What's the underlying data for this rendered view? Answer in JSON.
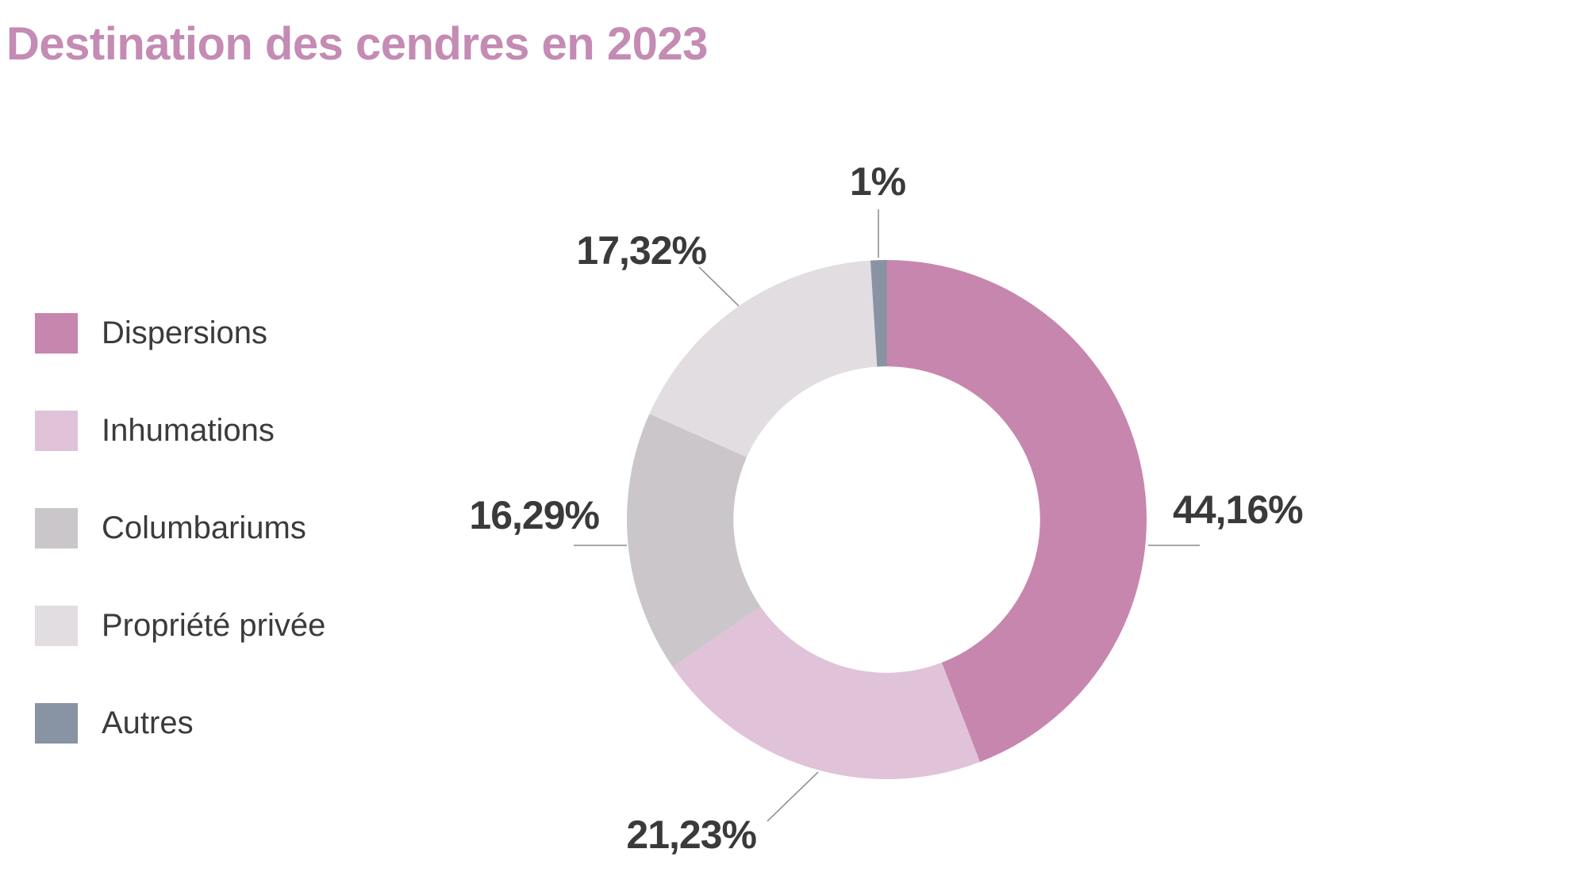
{
  "title": "Destination des cendres en 2023",
  "colors": {
    "title": "#c48bb4",
    "label_text": "#3a3a3a",
    "legend_text": "#3b3b3b",
    "callout_line": "#8a8a8a",
    "background": "#ffffff"
  },
  "chart_data": {
    "type": "pie",
    "title": "Destination des cendres en 2023",
    "categories": [
      "Dispersions",
      "Inhumations",
      "Columbariums",
      "Propriété privée",
      "Autres"
    ],
    "values": [
      44.16,
      21.23,
      16.29,
      17.32,
      1.0
    ],
    "labels": [
      "44,16%",
      "21,23%",
      "16,29%",
      "17,32%",
      "1%"
    ],
    "colors": [
      "#c786ad",
      "#e0c3d8",
      "#cac6ca",
      "#e2dde1",
      "#8893a3"
    ],
    "style": {
      "donut": true,
      "inner_radius_ratio": 0.59,
      "start_angle": "top",
      "direction": "clockwise",
      "legend_position": "left",
      "value_suffix": "%",
      "decimal_separator": ","
    }
  }
}
